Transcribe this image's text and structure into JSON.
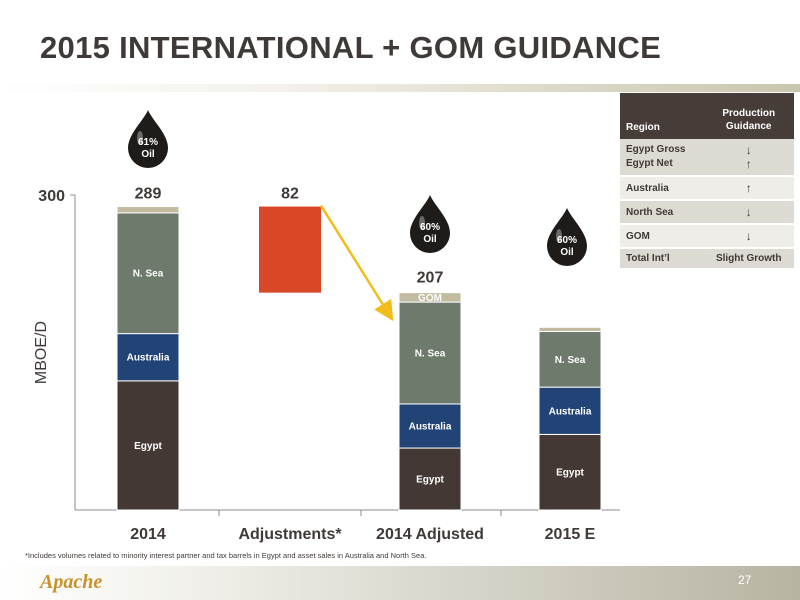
{
  "slide": {
    "title": "2015 INTERNATIONAL + GOM GUIDANCE",
    "footnote": "*Includes volumes related to minority interest partner and tax barrels in Egypt and asset sales in Australia and North Sea.",
    "logo": "Apache",
    "page_number": "27"
  },
  "chart_data": {
    "type": "bar",
    "stacked": true,
    "waterfall": true,
    "ylabel": "MBOE/D",
    "ylim": [
      0,
      300
    ],
    "y_tick_labels": [
      "300"
    ],
    "categories": [
      "2014",
      "Adjustments*",
      "2014 Adjusted",
      "2015 E"
    ],
    "totals": [
      "289",
      "82",
      "207",
      ""
    ],
    "series": [
      {
        "name": "Egypt",
        "values": [
          123,
          0,
          59,
          72
        ]
      },
      {
        "name": "Australia",
        "values": [
          45,
          0,
          42,
          45
        ]
      },
      {
        "name": "N. Sea",
        "values": [
          115,
          0,
          97,
          53
        ]
      },
      {
        "name": "GOM",
        "values": [
          6,
          0,
          9,
          4
        ]
      }
    ],
    "adjustment": {
      "from": 289,
      "to": 207,
      "value": 82
    },
    "oil_labels": [
      {
        "category": "2014",
        "text1": "61%",
        "text2": "Oil"
      },
      {
        "category": "2014 Adjusted",
        "text1": "60%",
        "text2": "Oil"
      },
      {
        "category": "2015 E",
        "text1": "60%",
        "text2": "Oil"
      }
    ],
    "colors": {
      "Egypt": "#433833",
      "Australia": "#214376",
      "N. Sea": "#6e7a6c",
      "GOM": "#c2bb9f",
      "adjustment": "#d84827",
      "arrow": "#f2bd1b"
    }
  },
  "guidance_table": {
    "headers": {
      "region": "Region",
      "guidance_line1": "Production",
      "guidance_line2": "Guidance"
    },
    "rows": [
      {
        "region1": "Egypt Gross",
        "region2": "Egypt Net",
        "arrow1": "↓",
        "arrow2": "↑"
      },
      {
        "region1": "Australia",
        "region2": "",
        "arrow1": "↑",
        "arrow2": ""
      },
      {
        "region1": "North Sea",
        "region2": "",
        "arrow1": "↓",
        "arrow2": ""
      },
      {
        "region1": "GOM",
        "region2": "",
        "arrow1": "↓",
        "arrow2": ""
      },
      {
        "region1": "Total Int’l",
        "region2": "",
        "arrow1": "Slight Growth",
        "arrow2": ""
      }
    ]
  }
}
